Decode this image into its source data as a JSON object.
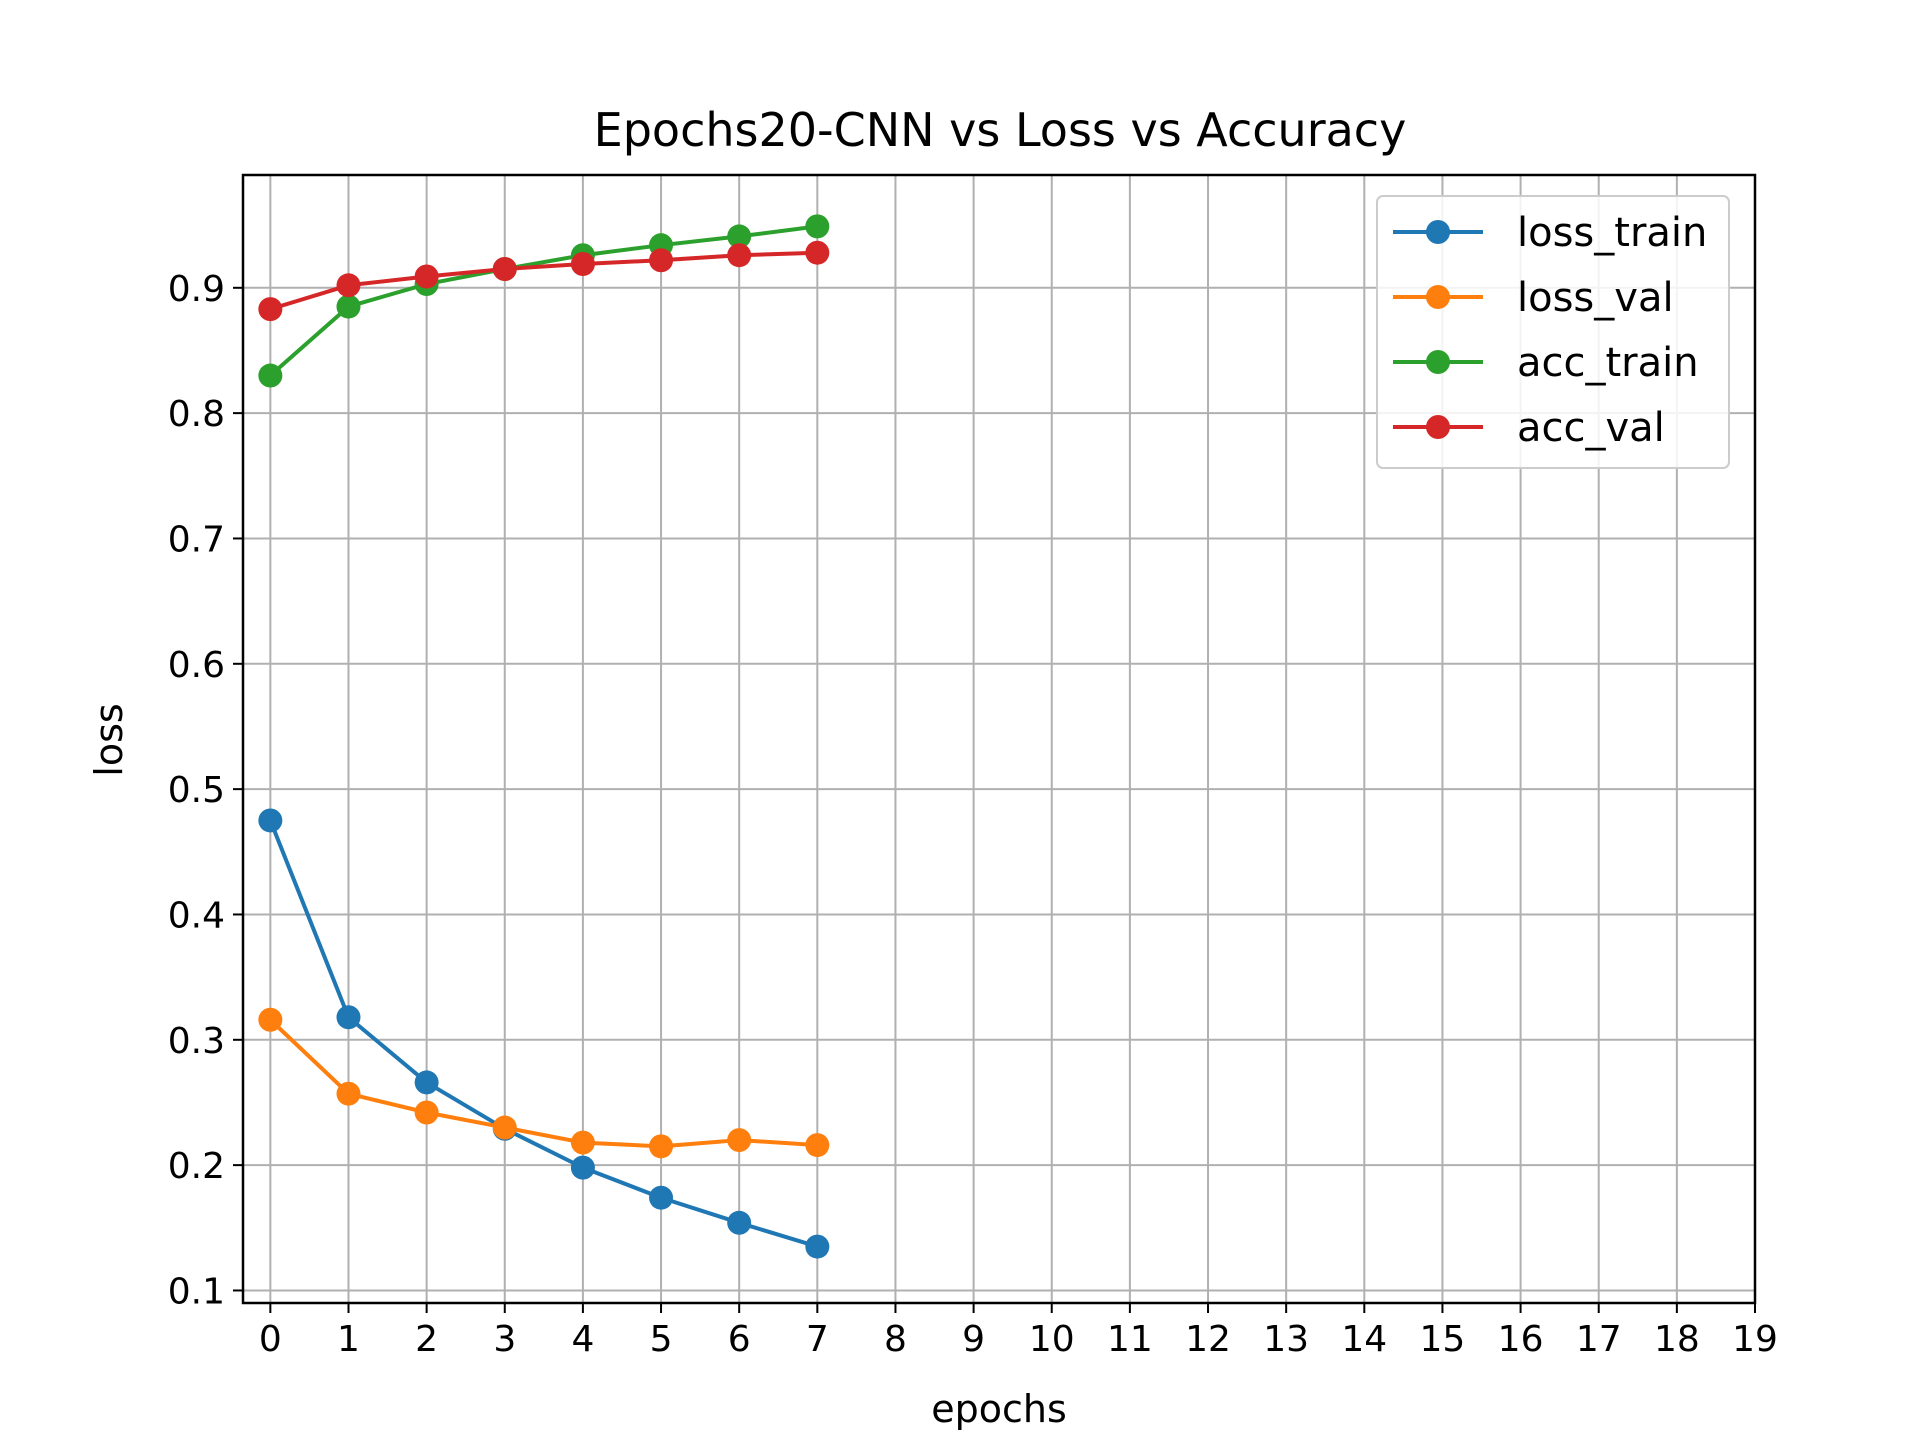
{
  "chart_data": {
    "type": "line",
    "title": "Epochs20-CNN vs Loss vs Accuracy",
    "xlabel": "epochs",
    "ylabel": "loss",
    "xlim": [
      -0.35,
      19
    ],
    "ylim": [
      0.09,
      0.99
    ],
    "xticks": [
      "0",
      "1",
      "2",
      "3",
      "4",
      "5",
      "6",
      "7",
      "8",
      "9",
      "10",
      "11",
      "12",
      "13",
      "14",
      "15",
      "16",
      "17",
      "18",
      "19"
    ],
    "yticks": [
      "0.1",
      "0.2",
      "0.3",
      "0.4",
      "0.5",
      "0.6",
      "0.7",
      "0.8",
      "0.9"
    ],
    "grid": true,
    "legend_position": "top-right",
    "x": [
      0,
      1,
      2,
      3,
      4,
      5,
      6,
      7
    ],
    "series": [
      {
        "name": "loss_train",
        "color": "#1f77b4",
        "marker": "circle",
        "values": [
          0.475,
          0.318,
          0.266,
          0.229,
          0.198,
          0.174,
          0.154,
          0.135
        ]
      },
      {
        "name": "loss_val",
        "color": "#ff7f0e",
        "marker": "circle",
        "values": [
          0.316,
          0.257,
          0.242,
          0.23,
          0.218,
          0.215,
          0.22,
          0.216
        ]
      },
      {
        "name": "acc_train",
        "color": "#2ca02c",
        "marker": "circle",
        "values": [
          0.83,
          0.885,
          0.903,
          0.915,
          0.926,
          0.934,
          0.941,
          0.949
        ]
      },
      {
        "name": "acc_val",
        "color": "#d62728",
        "marker": "circle",
        "values": [
          0.883,
          0.902,
          0.909,
          0.915,
          0.919,
          0.922,
          0.926,
          0.928
        ]
      }
    ]
  }
}
